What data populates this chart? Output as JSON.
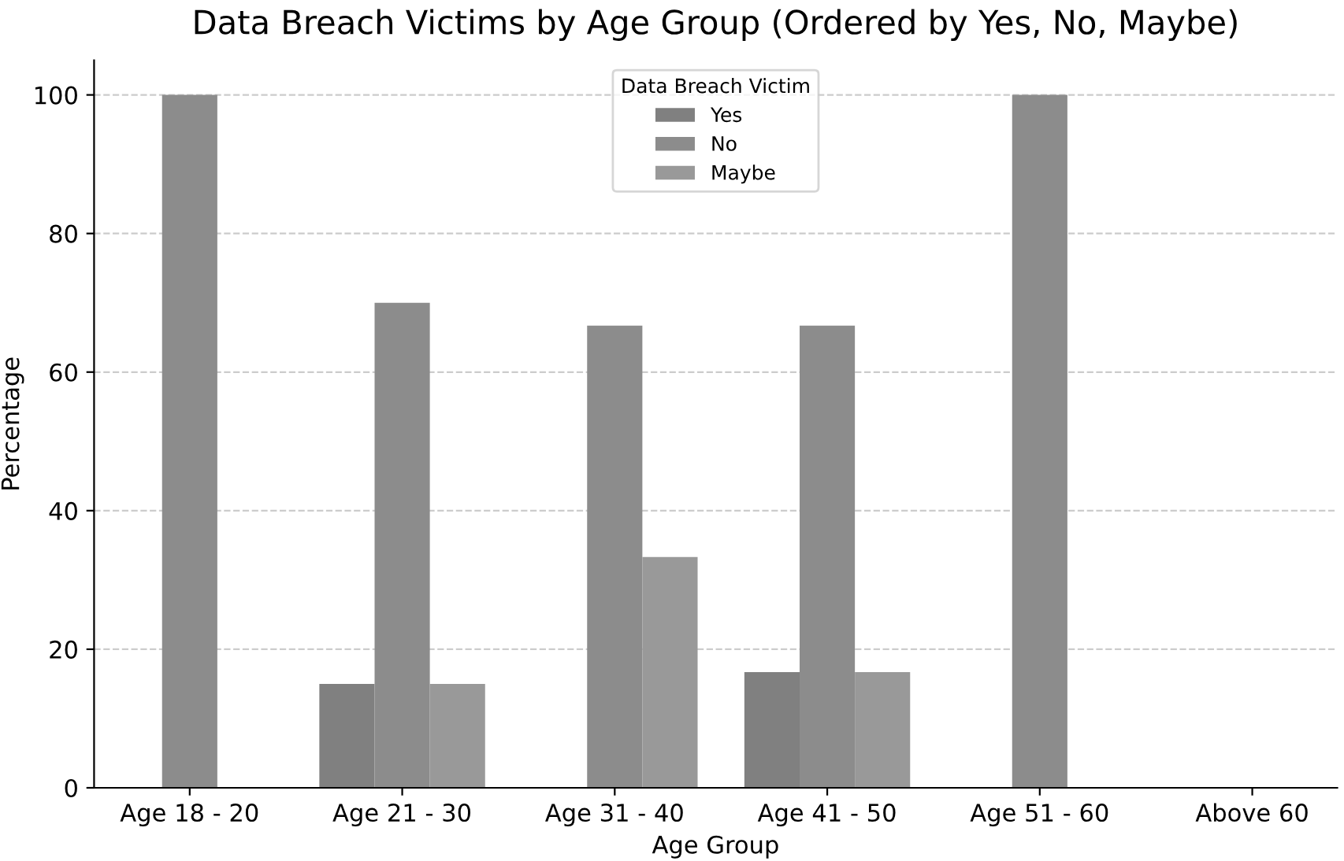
{
  "chart_data": {
    "type": "bar",
    "title": "Data Breach Victims by Age Group (Ordered by Yes, No, Maybe)",
    "xlabel": "Age Group",
    "ylabel": "Percentage",
    "legend_title": "Data Breach Victim",
    "categories": [
      "Age 18 - 20",
      "Age 21 - 30",
      "Age 31 - 40",
      "Age 41 - 50",
      "Age 51 - 60",
      "Above 60"
    ],
    "series": [
      {
        "name": "Yes",
        "color": "#808080",
        "values": [
          0,
          15,
          0,
          16.7,
          0,
          0
        ]
      },
      {
        "name": "No",
        "color": "#8c8c8c",
        "values": [
          100,
          70,
          66.7,
          66.7,
          100,
          0
        ]
      },
      {
        "name": "Maybe",
        "color": "#999999",
        "values": [
          0,
          15,
          33.3,
          16.7,
          0,
          0
        ]
      }
    ],
    "ylim": [
      0,
      105
    ],
    "yticks": [
      0,
      20,
      40,
      60,
      80,
      100
    ],
    "grid": "y",
    "legend": "top"
  }
}
